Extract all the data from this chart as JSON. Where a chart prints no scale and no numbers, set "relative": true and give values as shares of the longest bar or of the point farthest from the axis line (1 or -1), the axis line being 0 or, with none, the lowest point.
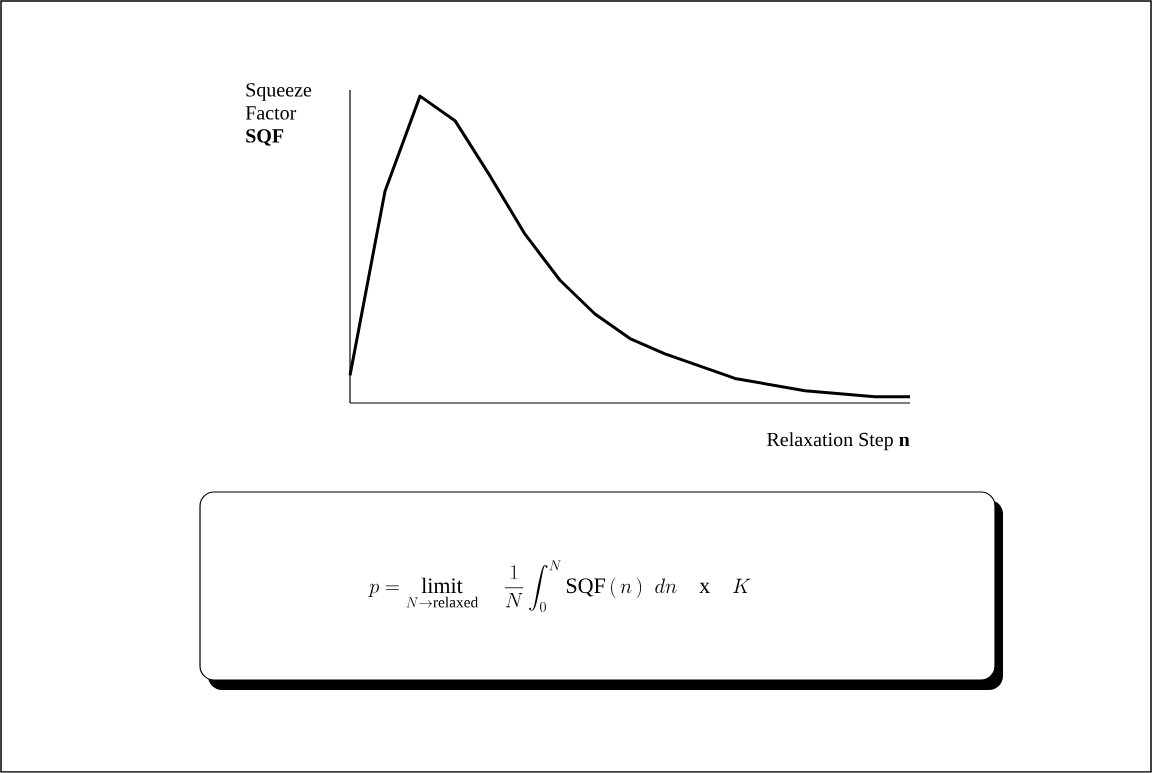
{
  "chart_data": {
    "type": "line",
    "relative": true,
    "xlabel": "Relaxation Step **n**",
    "ylabel": "Squeeze Factor **SQF**",
    "categories": [
      null,
      null,
      null,
      null,
      null,
      null,
      null,
      null,
      null,
      null,
      null,
      null,
      null,
      null,
      null,
      null,
      null
    ],
    "values": [
      0.09,
      0.69,
      1.0,
      0.92,
      0.74,
      0.55,
      0.4,
      0.29,
      0.21,
      0.16,
      0.12,
      0.08,
      0.06,
      0.04,
      0.03,
      0.02,
      0.02
    ],
    "color": "#000000",
    "marker": "none",
    "line_style": "solid",
    "annotations": [
      "p = \\mathop{\\mathrm{limit}}\\limits_{N \\rightarrow \\mathrm{relaxed}} \\quad \\frac{1}{N} \\int_{0}^{N} \\mathrm{SQF}\\,(\\,n\\,)\\;\\; dn \\quad \\mathrm{x} \\quad K"
    ]
  }
}
